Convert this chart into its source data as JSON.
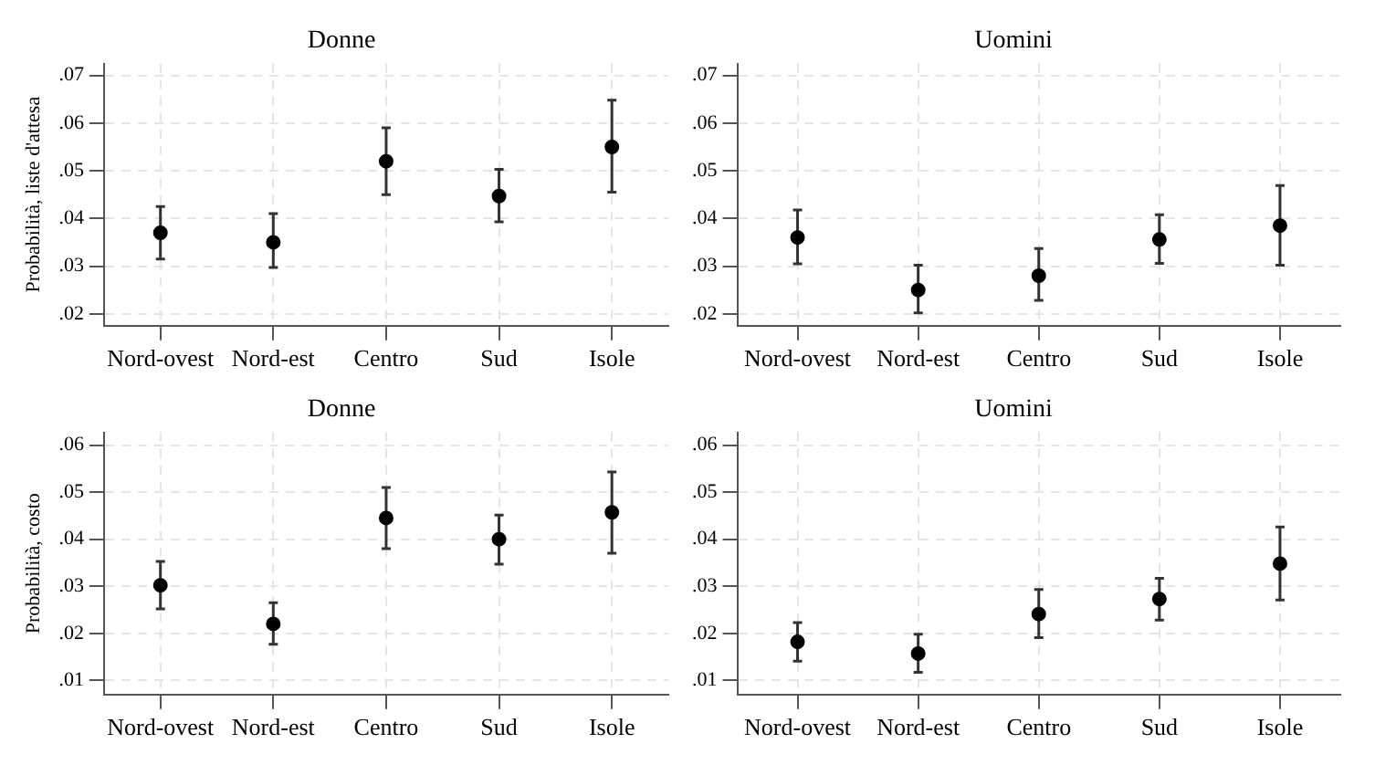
{
  "chart_data": [
    {
      "type": "scatter",
      "title": "Donne",
      "ylabel": "Probabilità, liste d'attesa",
      "categories": [
        "Nord-ovest",
        "Nord-est",
        "Centro",
        "Sud",
        "Isole"
      ],
      "values": [
        0.037,
        0.035,
        0.052,
        0.0447,
        0.055
      ],
      "errors": [
        [
          0.0315,
          0.0425
        ],
        [
          0.0297,
          0.041
        ],
        [
          0.045,
          0.059
        ],
        [
          0.0393,
          0.0503
        ],
        [
          0.0455,
          0.0648
        ]
      ],
      "color": "#000000",
      "ylim": [
        0.0175,
        0.0725
      ],
      "yticks": [
        {
          "value": 0.02,
          "label": ".02"
        },
        {
          "value": 0.03,
          "label": ".03"
        },
        {
          "value": 0.04,
          "label": ".04"
        },
        {
          "value": 0.05,
          "label": ".05"
        },
        {
          "value": 0.06,
          "label": ".06"
        },
        {
          "value": 0.07,
          "label": ".07"
        }
      ],
      "grid": true,
      "marker": "circle",
      "legend": false
    },
    {
      "type": "scatter",
      "title": "Uomini",
      "categories": [
        "Nord-ovest",
        "Nord-est",
        "Centro",
        "Sud",
        "Isole"
      ],
      "values": [
        0.036,
        0.025,
        0.028,
        0.0356,
        0.0385
      ],
      "errors": [
        [
          0.0305,
          0.0418
        ],
        [
          0.0202,
          0.0302
        ],
        [
          0.0228,
          0.0337
        ],
        [
          0.0306,
          0.0408
        ],
        [
          0.0302,
          0.0469
        ]
      ],
      "color": "#000000",
      "ylim": [
        0.0175,
        0.0725
      ],
      "yticks": [
        {
          "value": 0.02,
          "label": ".02"
        },
        {
          "value": 0.03,
          "label": ".03"
        },
        {
          "value": 0.04,
          "label": ".04"
        },
        {
          "value": 0.05,
          "label": ".05"
        },
        {
          "value": 0.06,
          "label": ".06"
        },
        {
          "value": 0.07,
          "label": ".07"
        }
      ],
      "grid": true,
      "marker": "circle",
      "legend": false
    },
    {
      "type": "scatter",
      "title": "Donne",
      "ylabel": "Probabilità, costo",
      "categories": [
        "Nord-ovest",
        "Nord-est",
        "Centro",
        "Sud",
        "Isole"
      ],
      "values": [
        0.0302,
        0.022,
        0.0445,
        0.04,
        0.0457
      ],
      "errors": [
        [
          0.0252,
          0.0353
        ],
        [
          0.0177,
          0.0265
        ],
        [
          0.038,
          0.051
        ],
        [
          0.0347,
          0.0451
        ],
        [
          0.037,
          0.0543
        ]
      ],
      "color": "#000000",
      "ylim": [
        0.007,
        0.0627
      ],
      "yticks": [
        {
          "value": 0.01,
          "label": ".01"
        },
        {
          "value": 0.02,
          "label": ".02"
        },
        {
          "value": 0.03,
          "label": ".03"
        },
        {
          "value": 0.04,
          "label": ".04"
        },
        {
          "value": 0.05,
          "label": ".05"
        },
        {
          "value": 0.06,
          "label": ".06"
        }
      ],
      "grid": true,
      "marker": "circle",
      "legend": false
    },
    {
      "type": "scatter",
      "title": "Uomini",
      "categories": [
        "Nord-ovest",
        "Nord-est",
        "Centro",
        "Sud",
        "Isole"
      ],
      "values": [
        0.0182,
        0.0157,
        0.0241,
        0.0273,
        0.0348
      ],
      "errors": [
        [
          0.0141,
          0.0223
        ],
        [
          0.0117,
          0.0198
        ],
        [
          0.0191,
          0.0293
        ],
        [
          0.0228,
          0.0317
        ],
        [
          0.0271,
          0.0426
        ]
      ],
      "color": "#000000",
      "ylim": [
        0.007,
        0.0627
      ],
      "yticks": [
        {
          "value": 0.01,
          "label": ".01"
        },
        {
          "value": 0.02,
          "label": ".02"
        },
        {
          "value": 0.03,
          "label": ".03"
        },
        {
          "value": 0.04,
          "label": ".04"
        },
        {
          "value": 0.05,
          "label": ".05"
        },
        {
          "value": 0.06,
          "label": ".06"
        }
      ],
      "grid": true,
      "marker": "circle",
      "legend": false
    }
  ]
}
